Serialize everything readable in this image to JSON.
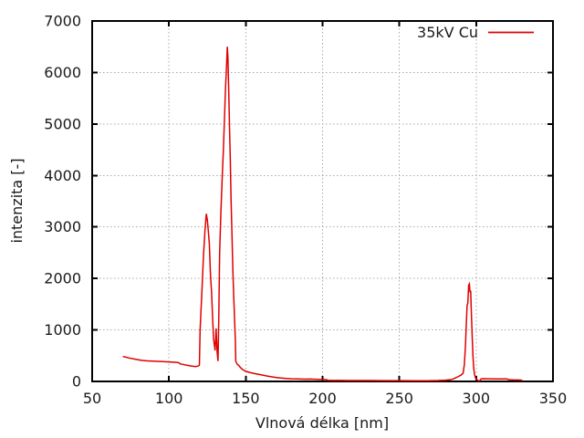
{
  "chart_data": {
    "type": "line",
    "title": "",
    "xlabel": "Vlnová délka [nm]",
    "ylabel": "intenzita [-]",
    "xlim": [
      50,
      350
    ],
    "ylim": [
      0,
      7000
    ],
    "xticks": [
      50,
      100,
      150,
      200,
      250,
      300,
      350
    ],
    "yticks": [
      0,
      1000,
      2000,
      3000,
      4000,
      5000,
      6000,
      7000
    ],
    "grid": true,
    "grid_style": "dotted",
    "legend_position": "top-right-inside",
    "series": [
      {
        "name": "35kV Cu",
        "color": "#e00000",
        "points": [
          [
            70,
            485
          ],
          [
            74,
            455
          ],
          [
            78,
            432
          ],
          [
            82,
            410
          ],
          [
            86,
            399
          ],
          [
            91,
            391
          ],
          [
            96,
            384
          ],
          [
            101,
            377
          ],
          [
            106,
            368
          ],
          [
            107.5,
            340
          ],
          [
            109,
            332
          ],
          [
            112,
            312
          ],
          [
            115,
            296
          ],
          [
            117.5,
            288
          ],
          [
            119,
            300
          ],
          [
            119.8,
            315
          ],
          [
            120.3,
            1000
          ],
          [
            121.5,
            1800
          ],
          [
            122.5,
            2450
          ],
          [
            123.5,
            2950
          ],
          [
            124.3,
            3255
          ],
          [
            125,
            3120
          ],
          [
            125.7,
            2900
          ],
          [
            126.3,
            2680
          ],
          [
            127,
            2100
          ],
          [
            127.7,
            1750
          ],
          [
            128.3,
            1320
          ],
          [
            129,
            830
          ],
          [
            130,
            600
          ],
          [
            130.7,
            1030
          ],
          [
            131.4,
            560
          ],
          [
            131.9,
            395
          ],
          [
            132.4,
            1150
          ],
          [
            133,
            2500
          ],
          [
            133.8,
            3300
          ],
          [
            134.6,
            3900
          ],
          [
            135.4,
            4500
          ],
          [
            136.2,
            5150
          ],
          [
            136.8,
            5680
          ],
          [
            137.4,
            6050
          ],
          [
            138,
            6500
          ],
          [
            138.4,
            6280
          ],
          [
            138.9,
            5700
          ],
          [
            139.4,
            4950
          ],
          [
            139.9,
            4380
          ],
          [
            140.4,
            3550
          ],
          [
            141,
            2870
          ],
          [
            141.6,
            2150
          ],
          [
            142.2,
            1620
          ],
          [
            142.8,
            1150
          ],
          [
            143.2,
            800
          ],
          [
            143.5,
            390
          ],
          [
            144.5,
            330
          ],
          [
            145.5,
            310
          ],
          [
            146.5,
            272
          ],
          [
            148,
            230
          ],
          [
            150,
            196
          ],
          [
            152.5,
            175
          ],
          [
            155,
            158
          ],
          [
            158,
            140
          ],
          [
            161,
            122
          ],
          [
            164,
            104
          ],
          [
            167,
            89
          ],
          [
            170,
            76
          ],
          [
            173,
            65
          ],
          [
            176,
            58
          ],
          [
            180,
            52
          ],
          [
            184,
            47
          ],
          [
            188,
            44
          ],
          [
            192,
            46
          ],
          [
            195,
            42
          ],
          [
            198,
            40
          ],
          [
            201,
            38
          ],
          [
            202.5,
            36
          ],
          [
            203.2,
            22
          ],
          [
            207,
            20
          ],
          [
            212,
            19
          ],
          [
            220,
            18
          ],
          [
            230,
            17
          ],
          [
            240,
            16
          ],
          [
            250,
            16
          ],
          [
            260,
            15
          ],
          [
            268,
            15
          ],
          [
            275,
            17
          ],
          [
            280,
            24
          ],
          [
            284,
            38
          ],
          [
            286,
            60
          ],
          [
            288,
            88
          ],
          [
            290,
            120
          ],
          [
            291.5,
            160
          ],
          [
            292.3,
            330
          ],
          [
            293,
            700
          ],
          [
            293.6,
            1150
          ],
          [
            294.1,
            1480
          ],
          [
            294.6,
            1520
          ],
          [
            295.1,
            1870
          ],
          [
            295.6,
            1895
          ],
          [
            296,
            1730
          ],
          [
            296.4,
            1760
          ],
          [
            296.9,
            1320
          ],
          [
            297.4,
            860
          ],
          [
            297.9,
            500
          ],
          [
            298.4,
            265
          ],
          [
            299,
            130
          ],
          [
            299.7,
            60
          ],
          [
            300.5,
            28
          ],
          [
            301.5,
            16
          ],
          [
            302.5,
            14
          ],
          [
            303.2,
            50
          ],
          [
            305,
            54
          ],
          [
            308,
            52
          ],
          [
            312,
            50
          ],
          [
            316,
            49
          ],
          [
            320,
            47
          ],
          [
            321.5,
            33
          ],
          [
            324,
            31
          ],
          [
            327,
            29
          ],
          [
            329.5,
            24
          ],
          [
            330,
            12
          ]
        ]
      }
    ]
  },
  "colors": {
    "curve": "#e00000",
    "grid": "#aaaaaa",
    "axis": "#000000",
    "text": "#1a1a1a",
    "background": "#ffffff"
  }
}
